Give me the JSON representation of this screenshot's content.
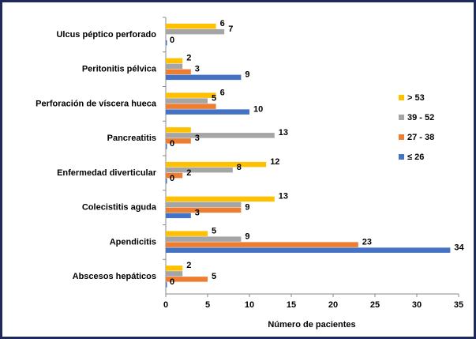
{
  "chart_data": {
    "type": "bar",
    "orientation": "horizontal",
    "xlabel": "Número de pacientes",
    "categories": [
      "Ulcus péptico perforado",
      "Peritonitis pélvica",
      "Perforación de víscera hueca",
      "Pancreatitis",
      "Enfermedad diverticular",
      "Colecistitis aguda",
      "Apendicitis",
      "Abscesos hepáticos"
    ],
    "series": [
      {
        "name": "> 53",
        "color": "#ffc000",
        "values": [
          6,
          2,
          6,
          3,
          12,
          13,
          5,
          2
        ],
        "value_labels": [
          "6",
          "2",
          "6",
          null,
          "12",
          "13",
          "5",
          "2"
        ]
      },
      {
        "name": "39 - 52",
        "color": "#a5a5a5",
        "values": [
          7,
          2,
          5,
          13,
          8,
          9,
          9,
          2
        ],
        "value_labels": [
          "7",
          null,
          "5",
          "13",
          "8",
          null,
          "9",
          null
        ]
      },
      {
        "name": "27 - 38",
        "color": "#ed7d31",
        "values": [
          null,
          3,
          6,
          3,
          2,
          9,
          23,
          5
        ],
        "value_labels": [
          null,
          "3",
          null,
          "3",
          "2",
          "9",
          "23",
          "5"
        ]
      },
      {
        "name": "≤ 26",
        "color": "#4472c4",
        "values": [
          0,
          9,
          10,
          0,
          0,
          3,
          34,
          0
        ],
        "value_labels": [
          "0",
          "9",
          "10",
          "0",
          "0",
          "3",
          "34",
          "0"
        ]
      }
    ],
    "xlim": [
      0,
      35
    ],
    "xticks": [
      0,
      5,
      10,
      15,
      20,
      25,
      30,
      35
    ],
    "grid": false,
    "legend": "right"
  }
}
